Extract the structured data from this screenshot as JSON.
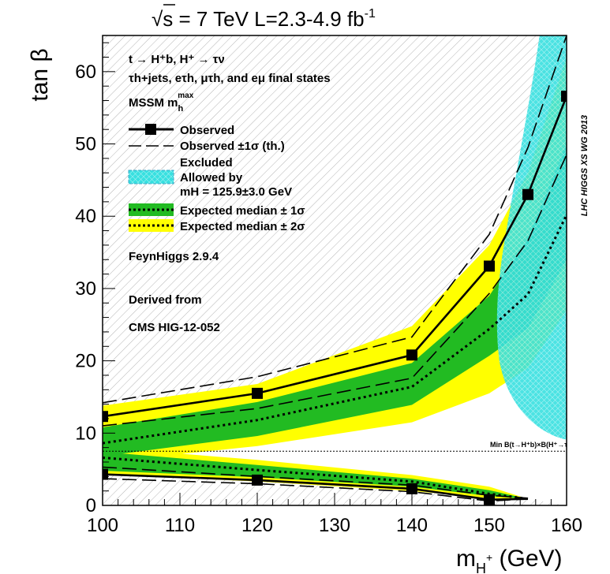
{
  "chart_data": {
    "type": "line",
    "title": "√s = 7 TeV   L=2.3-4.9 fb",
    "title_sup": "-1",
    "xlabel": "m",
    "xlabel_sub": "H",
    "xlabel_subsup": "+",
    "xlabel_unit": " (GeV)",
    "ylabel": "tan β",
    "xlim": [
      100,
      160
    ],
    "ylim": [
      0,
      65
    ],
    "xticks": [
      100,
      110,
      120,
      130,
      140,
      150,
      160
    ],
    "yticks": [
      0,
      10,
      20,
      30,
      40,
      50,
      60
    ],
    "watermark": "LHC HIGGS XS WG 2013",
    "threshold_line": {
      "y": 7.5,
      "label": "Min B(t→H⁺b)×B(H⁺→τν)"
    },
    "legend": {
      "heading_1": "t → H⁺b, H⁺ → τν",
      "heading_2": "τh+jets, eτh, μτh, and eμ final states",
      "heading_3": "MSSM m",
      "heading_3_sub": "h",
      "heading_3_sup": "max",
      "entries": [
        {
          "label": "Observed"
        },
        {
          "label": "Observed ±1σ (th.)"
        },
        {
          "label": "Excluded"
        },
        {
          "label": "Allowed by"
        },
        {
          "label": "mH = 125.9±3.0 GeV"
        },
        {
          "label": "Expected median ± 1σ"
        },
        {
          "label": "Expected median ± 2σ"
        }
      ],
      "note_1": "FeynHiggs 2.9.4",
      "note_2": "Derived from",
      "note_3": "CMS HIG-12-052"
    },
    "colors": {
      "observed": "#000000",
      "one_sigma": "#22bb22",
      "two_sigma": "#ffff00",
      "allowed": "#33dddd",
      "excluded": "#b0b0b0"
    },
    "upper": {
      "x": [
        100,
        120,
        140,
        150,
        155,
        160
      ],
      "observed": [
        12.3,
        15.5,
        20.8,
        33.1,
        43.0,
        56.6
      ],
      "obs_th_plus": [
        14.2,
        17.8,
        23.3,
        37.5,
        49.5,
        65.0
      ],
      "obs_th_minus": [
        11.0,
        13.4,
        17.6,
        29.3,
        36.6,
        48.5
      ],
      "expected": [
        8.6,
        11.8,
        16.4,
        24.4,
        29.2,
        40.2
      ],
      "one_sigma_low": [
        6.8,
        9.6,
        13.9,
        20.7,
        24.5,
        34.0
      ],
      "one_sigma_high": [
        10.8,
        14.3,
        19.7,
        29.0,
        37.0,
        50.0
      ],
      "two_sigma_low": [
        6.0,
        8.2,
        11.5,
        15.5,
        19.0,
        27.0
      ],
      "two_sigma_high": [
        13.8,
        16.8,
        24.8,
        36.0,
        46.0,
        62.0
      ]
    },
    "lower": {
      "x": [
        100,
        120,
        140,
        150,
        155
      ],
      "observed": [
        4.3,
        3.5,
        2.3,
        0.8,
        0.9
      ],
      "obs_th_plus": [
        5.3,
        4.0,
        2.8,
        1.4,
        1.0
      ],
      "obs_th_minus": [
        3.7,
        3.0,
        1.9,
        0.6,
        0.9
      ],
      "expected": [
        6.6,
        4.9,
        3.3,
        1.6,
        0.9
      ],
      "one_sigma_low": [
        4.8,
        3.9,
        2.6,
        1.3,
        0.9
      ],
      "one_sigma_high": [
        7.4,
        5.6,
        3.7,
        2.1,
        0.9
      ],
      "two_sigma_low": [
        4.3,
        3.3,
        2.0,
        1.0,
        0.9
      ],
      "two_sigma_high": [
        8.0,
        6.3,
        4.2,
        2.6,
        0.9
      ]
    }
  }
}
